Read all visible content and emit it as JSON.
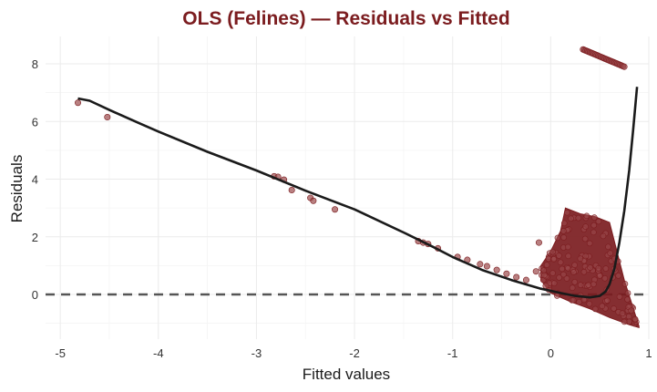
{
  "colors": {
    "accent": "#7b1c1f",
    "point_fill": "#9b4a4c",
    "smooth_line": "#1a1a1a",
    "zero_line": "#555555",
    "grid": "#ebebeb"
  },
  "chart_data": {
    "type": "scatter",
    "title": "OLS (Felines) — Residuals vs Fitted",
    "xlabel": "Fitted values",
    "ylabel": "Residuals",
    "xlim": [
      -5.15,
      1.0
    ],
    "ylim": [
      -1.55,
      8.95
    ],
    "x_ticks": [
      -5,
      -4,
      -3,
      -2,
      -1,
      0,
      1
    ],
    "y_ticks": [
      0,
      2,
      4,
      6,
      8
    ],
    "x_tick_labels": [
      "-5",
      "-4",
      "-3",
      "-2",
      "-1",
      "0",
      "1"
    ],
    "y_tick_labels": [
      "0",
      "2",
      "4",
      "6",
      "8"
    ],
    "reference_line": {
      "y": 0,
      "style": "dashed"
    },
    "isolated_points": [
      {
        "x": -4.82,
        "y": 6.65
      },
      {
        "x": -4.52,
        "y": 6.15
      },
      {
        "x": -2.82,
        "y": 4.1
      },
      {
        "x": -2.78,
        "y": 4.08
      },
      {
        "x": -2.72,
        "y": 3.98
      },
      {
        "x": -2.64,
        "y": 3.62
      },
      {
        "x": -2.45,
        "y": 3.35
      },
      {
        "x": -2.42,
        "y": 3.25
      },
      {
        "x": -2.2,
        "y": 2.95
      },
      {
        "x": -1.35,
        "y": 1.85
      },
      {
        "x": -1.3,
        "y": 1.8
      },
      {
        "x": -1.25,
        "y": 1.75
      },
      {
        "x": -1.15,
        "y": 1.6
      },
      {
        "x": -0.95,
        "y": 1.3
      },
      {
        "x": -0.85,
        "y": 1.2
      },
      {
        "x": -0.72,
        "y": 1.05
      },
      {
        "x": -0.65,
        "y": 0.98
      },
      {
        "x": -0.55,
        "y": 0.85
      },
      {
        "x": -0.45,
        "y": 0.72
      },
      {
        "x": -0.35,
        "y": 0.6
      },
      {
        "x": -0.25,
        "y": 0.5
      },
      {
        "x": -0.15,
        "y": 0.8
      },
      {
        "x": -0.12,
        "y": 1.8
      },
      {
        "x": -0.05,
        "y": 0.3
      }
    ],
    "dense_band": {
      "x_range": [
        -0.1,
        0.9
      ],
      "upper_edge": [
        [
          -0.1,
          1.0
        ],
        [
          0.0,
          1.5
        ],
        [
          0.1,
          2.2
        ],
        [
          0.15,
          3.0
        ],
        [
          0.3,
          2.8
        ],
        [
          0.45,
          2.7
        ],
        [
          0.6,
          2.5
        ],
        [
          0.75,
          0.5
        ],
        [
          0.9,
          -1.1
        ]
      ],
      "lower_edge": [
        [
          -0.1,
          0.5
        ],
        [
          0.0,
          0.05
        ],
        [
          0.2,
          -0.25
        ],
        [
          0.4,
          -0.5
        ],
        [
          0.6,
          -0.8
        ],
        [
          0.8,
          -1.05
        ],
        [
          0.9,
          -1.15
        ]
      ]
    },
    "high_residual_cluster": {
      "x_start": 0.33,
      "x_end": 0.75,
      "y_start": 8.5,
      "y_end": 7.9
    },
    "smooth_curve": [
      {
        "x": -4.82,
        "y": 6.8
      },
      {
        "x": -4.7,
        "y": 6.72
      },
      {
        "x": -4.5,
        "y": 6.4
      },
      {
        "x": -4.2,
        "y": 5.95
      },
      {
        "x": -4.0,
        "y": 5.65
      },
      {
        "x": -3.5,
        "y": 4.95
      },
      {
        "x": -3.0,
        "y": 4.3
      },
      {
        "x": -2.5,
        "y": 3.6
      },
      {
        "x": -2.0,
        "y": 2.95
      },
      {
        "x": -1.5,
        "y": 2.15
      },
      {
        "x": -1.2,
        "y": 1.65
      },
      {
        "x": -1.0,
        "y": 1.3
      },
      {
        "x": -0.7,
        "y": 0.85
      },
      {
        "x": -0.4,
        "y": 0.5
      },
      {
        "x": -0.1,
        "y": 0.2
      },
      {
        "x": 0.1,
        "y": 0.05
      },
      {
        "x": 0.25,
        "y": -0.05
      },
      {
        "x": 0.4,
        "y": -0.1
      },
      {
        "x": 0.5,
        "y": -0.05
      },
      {
        "x": 0.56,
        "y": 0.1
      },
      {
        "x": 0.6,
        "y": 0.35
      },
      {
        "x": 0.65,
        "y": 0.9
      },
      {
        "x": 0.7,
        "y": 1.8
      },
      {
        "x": 0.75,
        "y": 2.9
      },
      {
        "x": 0.8,
        "y": 4.3
      },
      {
        "x": 0.84,
        "y": 5.7
      },
      {
        "x": 0.88,
        "y": 7.2
      }
    ]
  }
}
